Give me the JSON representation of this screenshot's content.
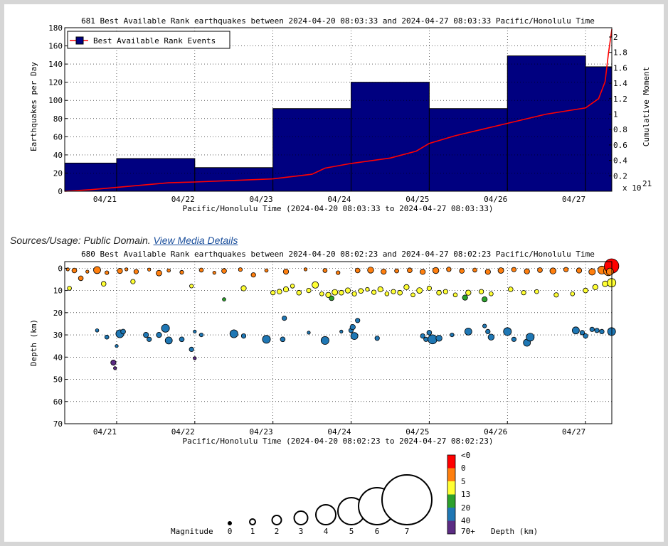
{
  "caption": {
    "sources_label": "Sources/Usage: Public Domain.",
    "link_text": "View Media Details"
  },
  "colors": {
    "bar": "#000080",
    "cumulative_line": "#ff0000",
    "depth_neg": "#ff0000",
    "depth_0": "#ff7f0e",
    "depth_5": "#ffff33",
    "depth_13": "#2ca02c",
    "depth_20": "#1f77b4",
    "depth_40": "#5b2c83"
  },
  "chart_data": [
    {
      "type": "bar",
      "title": "681 Best Available Rank earthquakes between 2024-04-20 08:03:33 and 2024-04-27 08:03:33 Pacific/Honolulu Time",
      "xlabel": "Pacific/Honolulu Time (2024-04-20 08:03:33 to 2024-04-27 08:03:33)",
      "ylabel": "Earthquakes per Day",
      "y2label": "Cumulative Moment",
      "y2_exponent": "x 10",
      "y2_exponent_power": "21",
      "legend": "Best Available Rank Events",
      "legend_position": "top-left",
      "xticks": [
        "04/21",
        "04/22",
        "04/23",
        "04/24",
        "04/25",
        "04/26",
        "04/27"
      ],
      "ylim": [
        0,
        180
      ],
      "yticks": [
        "0",
        "20",
        "40",
        "60",
        "80",
        "100",
        "120",
        "140",
        "160",
        "180"
      ],
      "y2lim": [
        0,
        2.12
      ],
      "y2ticks": [
        "0.2",
        "0.4",
        "0.6",
        "0.8",
        "1",
        "1.2",
        "1.4",
        "1.6",
        "1.8",
        "2"
      ],
      "bar_edges": [
        "2024-04-20T08:03",
        "2024-04-21T00:00",
        "2024-04-22T00:00",
        "2024-04-23T00:00",
        "2024-04-24T00:00",
        "2024-04-25T00:00",
        "2024-04-26T00:00",
        "2024-04-27T00:00",
        "2024-04-27T08:03"
      ],
      "values": [
        31,
        36,
        26,
        91,
        120,
        91,
        149,
        137
      ],
      "cumulative": [
        [
          "2024-04-20T08:03",
          0.0
        ],
        [
          "2024-04-20T16:00",
          0.02
        ],
        [
          "2024-04-21T00:00",
          0.05
        ],
        [
          "2024-04-21T08:00",
          0.08
        ],
        [
          "2024-04-21T16:00",
          0.11
        ],
        [
          "2024-04-22T00:00",
          0.12
        ],
        [
          "2024-04-22T12:00",
          0.14
        ],
        [
          "2024-04-23T00:00",
          0.16
        ],
        [
          "2024-04-23T12:00",
          0.22
        ],
        [
          "2024-04-23T16:00",
          0.3
        ],
        [
          "2024-04-24T00:00",
          0.36
        ],
        [
          "2024-04-24T12:00",
          0.43
        ],
        [
          "2024-04-24T20:00",
          0.52
        ],
        [
          "2024-04-25T00:00",
          0.62
        ],
        [
          "2024-04-25T08:00",
          0.72
        ],
        [
          "2024-04-25T16:00",
          0.8
        ],
        [
          "2024-04-26T00:00",
          0.88
        ],
        [
          "2024-04-26T12:00",
          1.0
        ],
        [
          "2024-04-27T00:00",
          1.08
        ],
        [
          "2024-04-27T04:00",
          1.2
        ],
        [
          "2024-04-27T06:00",
          1.42
        ],
        [
          "2024-04-27T07:00",
          1.78
        ],
        [
          "2024-04-27T08:03",
          2.1
        ]
      ],
      "grid": true
    },
    {
      "type": "scatter",
      "title": "680 Best Available Rank earthquakes between 2024-04-20 08:02:23 and 2024-04-27 08:02:23 Pacific/Honolulu Time",
      "xlabel": "Pacific/Honolulu Time (2024-04-20 08:02:23 to 2024-04-27 08:02:23)",
      "ylabel": "Depth (km)",
      "xticks": [
        "04/21",
        "04/22",
        "04/23",
        "04/24",
        "04/25",
        "04/26",
        "04/27"
      ],
      "ylim": [
        70,
        -3
      ],
      "yticks": [
        "0",
        "10",
        "20",
        "30",
        "40",
        "50",
        "60",
        "70"
      ],
      "grid": true,
      "points": [
        [
          "2024-04-20T09:00",
          0.5,
          2.0
        ],
        [
          "2024-04-20T11:00",
          1.0,
          2.5
        ],
        [
          "2024-04-20T13:00",
          4.5,
          2.5
        ],
        [
          "2024-04-20T15:00",
          1.5,
          2.0
        ],
        [
          "2024-04-20T18:00",
          0.8,
          3.0
        ],
        [
          "2024-04-20T21:00",
          2.0,
          2.2
        ],
        [
          "2024-04-21T01:00",
          1.2,
          2.6
        ],
        [
          "2024-04-21T03:00",
          0.5,
          2.0
        ],
        [
          "2024-04-21T06:00",
          1.5,
          2.4
        ],
        [
          "2024-04-21T10:00",
          0.6,
          2.0
        ],
        [
          "2024-04-21T13:00",
          2.2,
          2.7
        ],
        [
          "2024-04-21T16:00",
          1.0,
          2.1
        ],
        [
          "2024-04-21T20:00",
          1.8,
          2.2
        ],
        [
          "2024-04-22T02:00",
          0.8,
          2.3
        ],
        [
          "2024-04-22T06:00",
          2.0,
          2.0
        ],
        [
          "2024-04-22T09:00",
          1.2,
          2.5
        ],
        [
          "2024-04-22T14:00",
          0.6,
          2.2
        ],
        [
          "2024-04-22T18:00",
          3.0,
          2.4
        ],
        [
          "2024-04-22T22:00",
          1.0,
          2.1
        ],
        [
          "2024-04-23T04:00",
          1.5,
          2.6
        ],
        [
          "2024-04-23T10:00",
          0.5,
          2.0
        ],
        [
          "2024-04-23T16:00",
          1.0,
          2.3
        ],
        [
          "2024-04-23T20:00",
          2.0,
          2.2
        ],
        [
          "2024-04-24T02:00",
          1.0,
          2.5
        ],
        [
          "2024-04-24T06:00",
          0.8,
          2.8
        ],
        [
          "2024-04-24T10:00",
          1.5,
          2.6
        ],
        [
          "2024-04-24T14:00",
          1.2,
          2.3
        ],
        [
          "2024-04-24T18:00",
          0.9,
          2.5
        ],
        [
          "2024-04-24T22:00",
          1.6,
          2.6
        ],
        [
          "2024-04-25T02:00",
          1.0,
          2.8
        ],
        [
          "2024-04-25T06:00",
          0.5,
          2.4
        ],
        [
          "2024-04-25T10:00",
          1.2,
          2.5
        ],
        [
          "2024-04-25T14:00",
          0.8,
          2.3
        ],
        [
          "2024-04-25T18:00",
          1.6,
          2.6
        ],
        [
          "2024-04-25T22:00",
          1.0,
          2.7
        ],
        [
          "2024-04-26T02:00",
          0.6,
          2.4
        ],
        [
          "2024-04-26T06:00",
          1.4,
          2.6
        ],
        [
          "2024-04-26T10:00",
          0.8,
          2.5
        ],
        [
          "2024-04-26T14:00",
          1.2,
          2.8
        ],
        [
          "2024-04-26T18:00",
          0.6,
          2.4
        ],
        [
          "2024-04-26T22:00",
          1.0,
          2.6
        ],
        [
          "2024-04-27T02:00",
          1.6,
          2.9
        ],
        [
          "2024-04-27T05:00",
          0.8,
          3.2
        ],
        [
          "2024-04-27T07:00",
          1.2,
          3.5
        ],
        [
          "2024-04-27T08:00",
          -1.0,
          4.3
        ],
        [
          "2024-04-27T07:30",
          1.5,
          3.0
        ],
        [
          "2024-04-20T09:30",
          9.0,
          2.3
        ],
        [
          "2024-04-20T20:00",
          7.0,
          2.5
        ],
        [
          "2024-04-21T05:00",
          6.0,
          2.4
        ],
        [
          "2024-04-21T23:00",
          8.0,
          2.2
        ],
        [
          "2024-04-22T15:00",
          9.0,
          2.6
        ],
        [
          "2024-04-23T00:00",
          11.0,
          2.4
        ],
        [
          "2024-04-23T02:00",
          10.5,
          2.5
        ],
        [
          "2024-04-23T04:00",
          9.5,
          2.6
        ],
        [
          "2024-04-23T06:00",
          8.0,
          2.3
        ],
        [
          "2024-04-23T08:00",
          11.0,
          2.5
        ],
        [
          "2024-04-23T11:00",
          10.0,
          2.4
        ],
        [
          "2024-04-23T13:00",
          7.5,
          2.9
        ],
        [
          "2024-04-23T15:00",
          11.5,
          2.3
        ],
        [
          "2024-04-23T17:00",
          12.0,
          2.6
        ],
        [
          "2024-04-23T19:00",
          10.8,
          2.7
        ],
        [
          "2024-04-23T21:00",
          11.0,
          2.5
        ],
        [
          "2024-04-23T23:00",
          10.0,
          2.6
        ],
        [
          "2024-04-24T01:00",
          11.5,
          2.4
        ],
        [
          "2024-04-24T03:00",
          10.2,
          2.5
        ],
        [
          "2024-04-24T05:00",
          9.5,
          2.2
        ],
        [
          "2024-04-24T07:00",
          10.8,
          2.4
        ],
        [
          "2024-04-24T09:00",
          9.5,
          2.6
        ],
        [
          "2024-04-24T11:00",
          11.5,
          2.3
        ],
        [
          "2024-04-24T13:00",
          10.5,
          2.4
        ],
        [
          "2024-04-24T15:00",
          11.0,
          2.5
        ],
        [
          "2024-04-24T17:00",
          8.5,
          2.6
        ],
        [
          "2024-04-24T19:00",
          12.0,
          2.3
        ],
        [
          "2024-04-24T21:00",
          10.0,
          2.7
        ],
        [
          "2024-04-25T00:00",
          9.0,
          2.4
        ],
        [
          "2024-04-25T03:00",
          11.0,
          2.5
        ],
        [
          "2024-04-25T05:00",
          10.5,
          2.4
        ],
        [
          "2024-04-25T08:00",
          12.0,
          2.3
        ],
        [
          "2024-04-25T12:00",
          11.0,
          2.6
        ],
        [
          "2024-04-25T16:00",
          10.5,
          2.4
        ],
        [
          "2024-04-25T19:00",
          11.5,
          2.3
        ],
        [
          "2024-04-26T01:00",
          9.5,
          2.5
        ],
        [
          "2024-04-26T05:00",
          11.0,
          2.4
        ],
        [
          "2024-04-26T09:00",
          10.5,
          2.3
        ],
        [
          "2024-04-26T15:00",
          12.0,
          2.4
        ],
        [
          "2024-04-26T20:00",
          11.5,
          2.3
        ],
        [
          "2024-04-27T00:00",
          10.0,
          2.5
        ],
        [
          "2024-04-27T03:00",
          8.5,
          2.6
        ],
        [
          "2024-04-27T06:00",
          7.0,
          2.7
        ],
        [
          "2024-04-27T08:00",
          6.5,
          3.3
        ],
        [
          "2024-04-23T18:00",
          13.5,
          2.5
        ],
        [
          "2024-04-25T11:00",
          13.2,
          2.6
        ],
        [
          "2024-04-25T17:00",
          14.0,
          2.6
        ],
        [
          "2024-04-22T09:00",
          14.0,
          2.1
        ],
        [
          "2024-04-20T18:00",
          28.0,
          2.1
        ],
        [
          "2024-04-20T21:00",
          31.0,
          2.3
        ],
        [
          "2024-04-21T01:00",
          29.5,
          3.2
        ],
        [
          "2024-04-21T02:00",
          28.5,
          2.5
        ],
        [
          "2024-04-21T00:00",
          35.0,
          2.0
        ],
        [
          "2024-04-21T09:00",
          30.0,
          2.6
        ],
        [
          "2024-04-21T10:00",
          32.0,
          2.4
        ],
        [
          "2024-04-21T13:00",
          30.0,
          2.6
        ],
        [
          "2024-04-21T15:00",
          27.0,
          3.2
        ],
        [
          "2024-04-21T16:00",
          32.5,
          3.0
        ],
        [
          "2024-04-21T20:00",
          32.0,
          2.5
        ],
        [
          "2024-04-22T02:00",
          30.0,
          2.2
        ],
        [
          "2024-04-22T00:00",
          28.5,
          2.0
        ],
        [
          "2024-04-21T23:00",
          36.5,
          2.4
        ],
        [
          "2024-04-22T12:00",
          29.5,
          3.2
        ],
        [
          "2024-04-22T15:00",
          30.5,
          2.4
        ],
        [
          "2024-04-22T22:00",
          32.0,
          3.2
        ],
        [
          "2024-04-23T03:00",
          32.0,
          2.5
        ],
        [
          "2024-04-23T03:30",
          22.5,
          2.4
        ],
        [
          "2024-04-23T11:00",
          29.0,
          2.0
        ],
        [
          "2024-04-23T16:00",
          32.5,
          3.2
        ],
        [
          "2024-04-23T21:00",
          28.5,
          2.0
        ],
        [
          "2024-04-24T00:00",
          28.0,
          2.4
        ],
        [
          "2024-04-24T00:30",
          26.5,
          2.6
        ],
        [
          "2024-04-24T02:00",
          23.5,
          2.4
        ],
        [
          "2024-04-24T01:00",
          30.5,
          3.0
        ],
        [
          "2024-04-24T08:00",
          31.5,
          2.4
        ],
        [
          "2024-04-24T22:00",
          30.5,
          2.4
        ],
        [
          "2024-04-24T23:00",
          32.0,
          2.4
        ],
        [
          "2024-04-25T00:00",
          29.0,
          2.5
        ],
        [
          "2024-04-25T01:00",
          32.0,
          3.4
        ],
        [
          "2024-04-25T03:00",
          31.5,
          2.8
        ],
        [
          "2024-04-25T07:00",
          30.0,
          2.2
        ],
        [
          "2024-04-25T12:00",
          28.5,
          3.0
        ],
        [
          "2024-04-25T18:00",
          28.5,
          2.4
        ],
        [
          "2024-04-25T19:00",
          31.0,
          2.8
        ],
        [
          "2024-04-25T17:00",
          26.0,
          2.2
        ],
        [
          "2024-04-26T00:00",
          28.5,
          3.2
        ],
        [
          "2024-04-26T02:00",
          32.0,
          2.4
        ],
        [
          "2024-04-26T06:00",
          33.5,
          3.0
        ],
        [
          "2024-04-26T07:00",
          31.0,
          3.2
        ],
        [
          "2024-04-26T21:00",
          28.0,
          3.0
        ],
        [
          "2024-04-26T23:00",
          29.0,
          2.4
        ],
        [
          "2024-04-27T00:00",
          30.5,
          2.4
        ],
        [
          "2024-04-27T02:00",
          27.5,
          2.4
        ],
        [
          "2024-04-27T03:30",
          28.0,
          2.4
        ],
        [
          "2024-04-27T05:00",
          28.5,
          2.4
        ],
        [
          "2024-04-27T08:00",
          28.5,
          3.2
        ],
        [
          "2024-04-22T00:00",
          40.5,
          2.0
        ],
        [
          "2024-04-20T23:00",
          42.5,
          2.6
        ],
        [
          "2024-04-20T23:30",
          45.0,
          2.0
        ]
      ]
    }
  ],
  "legend_bottom": {
    "magnitude_label": "Magnitude",
    "magnitudes": [
      "0",
      "1",
      "2",
      "3",
      "4",
      "5",
      "6",
      "7"
    ],
    "depth_label": "Depth (km)",
    "depth_bins": [
      "<0",
      "0",
      "5",
      "13",
      "20",
      "40",
      "70+"
    ]
  }
}
